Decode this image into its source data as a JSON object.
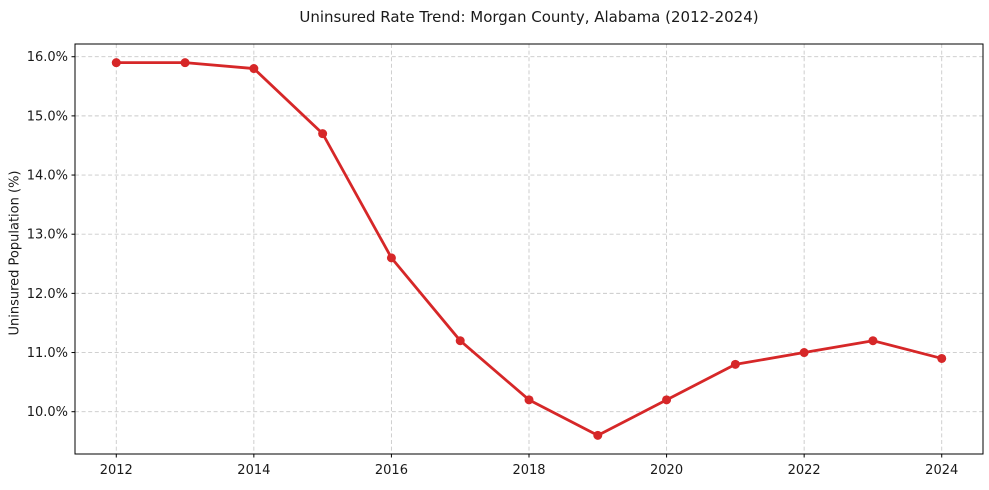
{
  "chart_data": {
    "type": "line",
    "title": "Uninsured Rate Trend: Morgan County, Alabama (2012-2024)",
    "xlabel": "",
    "ylabel": "Uninsured Population (%)",
    "x": [
      2012,
      2013,
      2014,
      2015,
      2016,
      2017,
      2018,
      2019,
      2020,
      2021,
      2022,
      2023,
      2024
    ],
    "values": [
      15.9,
      15.9,
      15.8,
      14.7,
      12.6,
      11.2,
      10.2,
      9.6,
      10.2,
      10.8,
      11.0,
      11.2,
      10.9
    ],
    "unit": "%",
    "xlim": [
      2011.4,
      2024.6
    ],
    "ylim": [
      9.285,
      16.215
    ],
    "xticks": {
      "values": [
        2012,
        2014,
        2016,
        2018,
        2020,
        2022,
        2024
      ],
      "labels": [
        "2012",
        "2014",
        "2016",
        "2018",
        "2020",
        "2022",
        "2024"
      ]
    },
    "yticks": {
      "values": [
        10,
        11,
        12,
        13,
        14,
        15,
        16
      ],
      "labels": [
        "10.0%",
        "11.0%",
        "12.0%",
        "13.0%",
        "14.0%",
        "15.0%",
        "16.0%"
      ]
    },
    "grid": "both, dashed",
    "legend_position": "none",
    "colors": {
      "line": "#d62728",
      "marker": "#d62728",
      "grid": "#c9c9c9",
      "spine": "#000000",
      "text": "#1a1a1a",
      "background": "#ffffff"
    }
  }
}
